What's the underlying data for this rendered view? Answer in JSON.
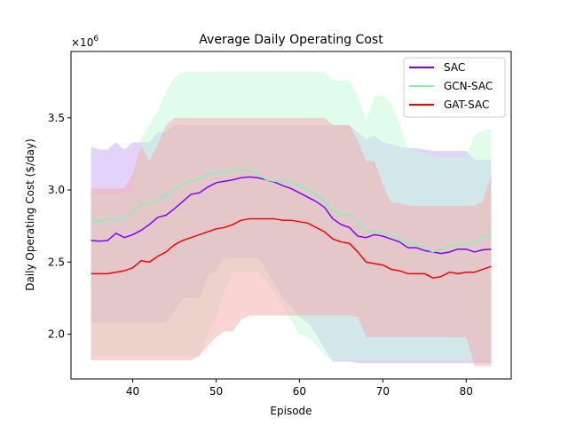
{
  "chart_data": {
    "type": "line",
    "title": "Average Daily Operating Cost",
    "xlabel": "Episode",
    "ylabel": "Daily Operating Cost ($/day)",
    "y_multiplier_text": "×10",
    "y_multiplier_exp": "6",
    "xlim": [
      32.6,
      85.4
    ],
    "ylim": [
      1.69,
      3.96
    ],
    "xticks": [
      40,
      50,
      60,
      70,
      80
    ],
    "yticks": [
      2.0,
      2.5,
      3.0,
      3.5
    ],
    "ytick_labels": [
      "2.0",
      "2.5",
      "3.0",
      "3.5"
    ],
    "legend_position": "top-right",
    "x": [
      35,
      36,
      37,
      38,
      39,
      40,
      41,
      42,
      43,
      44,
      45,
      46,
      47,
      48,
      49,
      50,
      51,
      52,
      53,
      54,
      55,
      56,
      57,
      58,
      59,
      60,
      61,
      62,
      63,
      64,
      65,
      66,
      67,
      68,
      69,
      70,
      71,
      72,
      73,
      74,
      75,
      76,
      77,
      78,
      79,
      80,
      81,
      82,
      83
    ],
    "series": [
      {
        "name": "SAC",
        "color": "#7f00ff",
        "band_color": "#c8a8f8",
        "values": [
          2.65,
          2.645,
          2.65,
          2.7,
          2.67,
          2.69,
          2.72,
          2.76,
          2.81,
          2.825,
          2.87,
          2.92,
          2.97,
          2.98,
          3.02,
          3.05,
          3.06,
          3.07,
          3.085,
          3.09,
          3.085,
          3.07,
          3.055,
          3.03,
          3.01,
          2.98,
          2.95,
          2.92,
          2.88,
          2.8,
          2.76,
          2.74,
          2.68,
          2.67,
          2.69,
          2.68,
          2.66,
          2.64,
          2.6,
          2.6,
          2.58,
          2.57,
          2.56,
          2.57,
          2.59,
          2.59,
          2.57,
          2.585,
          2.59
        ],
        "upper": [
          3.3,
          3.28,
          3.28,
          3.33,
          3.28,
          3.33,
          3.33,
          3.33,
          3.4,
          3.4,
          3.45,
          3.45,
          3.45,
          3.45,
          3.45,
          3.45,
          3.45,
          3.45,
          3.45,
          3.45,
          3.45,
          3.45,
          3.45,
          3.45,
          3.45,
          3.45,
          3.45,
          3.45,
          3.45,
          3.45,
          3.45,
          3.45,
          3.4,
          3.35,
          3.38,
          3.33,
          3.32,
          3.3,
          3.29,
          3.29,
          3.28,
          3.27,
          3.27,
          3.27,
          3.27,
          3.27,
          3.21,
          3.21,
          3.21
        ],
        "lower": [
          2.08,
          2.08,
          2.08,
          2.08,
          2.08,
          2.08,
          2.08,
          2.08,
          2.08,
          2.08,
          2.16,
          2.25,
          2.25,
          2.25,
          2.4,
          2.45,
          2.53,
          2.53,
          2.53,
          2.53,
          2.53,
          2.45,
          2.35,
          2.25,
          2.2,
          2.12,
          2.08,
          2.0,
          1.9,
          1.81,
          1.81,
          1.81,
          1.8,
          1.8,
          1.8,
          1.8,
          1.8,
          1.8,
          1.8,
          1.8,
          1.8,
          1.8,
          1.8,
          1.8,
          1.8,
          1.8,
          1.8,
          1.8,
          1.8
        ]
      },
      {
        "name": "GCN-SAC",
        "color": "#7ff5b4",
        "band_color": "#c2fbd9",
        "values": [
          2.78,
          2.78,
          2.8,
          2.79,
          2.81,
          2.85,
          2.9,
          2.91,
          2.93,
          2.96,
          3.01,
          3.04,
          3.06,
          3.08,
          3.11,
          3.12,
          3.12,
          3.14,
          3.14,
          3.13,
          3.11,
          3.07,
          3.06,
          3.06,
          3.05,
          3.03,
          3.0,
          2.97,
          2.92,
          2.86,
          2.83,
          2.83,
          2.78,
          2.71,
          2.72,
          2.71,
          2.69,
          2.66,
          2.64,
          2.62,
          2.6,
          2.57,
          2.59,
          2.61,
          2.62,
          2.62,
          2.64,
          2.67,
          2.7
        ],
        "upper": [
          2.97,
          2.97,
          2.97,
          2.97,
          2.97,
          3.01,
          3.36,
          3.45,
          3.55,
          3.68,
          3.78,
          3.82,
          3.82,
          3.82,
          3.82,
          3.82,
          3.82,
          3.82,
          3.82,
          3.82,
          3.82,
          3.82,
          3.82,
          3.82,
          3.82,
          3.82,
          3.82,
          3.82,
          3.82,
          3.76,
          3.76,
          3.76,
          3.65,
          3.48,
          3.65,
          3.65,
          3.6,
          3.46,
          3.29,
          3.28,
          3.25,
          3.23,
          3.23,
          3.23,
          3.23,
          3.23,
          3.38,
          3.41,
          3.42
        ],
        "lower": [
          1.85,
          1.85,
          1.85,
          1.85,
          1.85,
          1.85,
          1.85,
          1.85,
          1.85,
          1.85,
          1.85,
          1.85,
          1.85,
          1.85,
          2.0,
          2.12,
          2.3,
          2.43,
          2.43,
          2.43,
          2.43,
          2.38,
          2.28,
          2.2,
          2.1,
          2.0,
          1.98,
          1.93,
          1.85,
          1.82,
          1.82,
          1.82,
          1.82,
          1.82,
          1.82,
          1.82,
          1.82,
          1.82,
          1.82,
          1.82,
          1.82,
          1.82,
          1.82,
          1.82,
          1.82,
          1.82,
          1.82,
          1.82,
          1.82
        ]
      },
      {
        "name": "GAT-SAC",
        "color": "#ff0000",
        "band_color": "#f5a8a8",
        "values": [
          2.42,
          2.42,
          2.42,
          2.43,
          2.44,
          2.46,
          2.51,
          2.5,
          2.54,
          2.57,
          2.62,
          2.65,
          2.67,
          2.69,
          2.71,
          2.73,
          2.74,
          2.76,
          2.79,
          2.8,
          2.8,
          2.8,
          2.8,
          2.79,
          2.79,
          2.78,
          2.77,
          2.74,
          2.71,
          2.66,
          2.64,
          2.63,
          2.57,
          2.5,
          2.49,
          2.48,
          2.45,
          2.44,
          2.42,
          2.42,
          2.42,
          2.39,
          2.4,
          2.43,
          2.42,
          2.43,
          2.43,
          2.45,
          2.47
        ],
        "upper": [
          3.01,
          3.01,
          3.01,
          3.01,
          3.01,
          3.11,
          3.31,
          3.2,
          3.31,
          3.45,
          3.5,
          3.5,
          3.5,
          3.5,
          3.5,
          3.5,
          3.5,
          3.5,
          3.5,
          3.5,
          3.5,
          3.5,
          3.5,
          3.5,
          3.5,
          3.5,
          3.5,
          3.5,
          3.5,
          3.45,
          3.45,
          3.45,
          3.34,
          3.2,
          3.2,
          3.04,
          2.91,
          2.91,
          2.89,
          2.89,
          2.89,
          2.89,
          2.89,
          2.89,
          2.89,
          2.89,
          2.89,
          2.92,
          3.1
        ],
        "lower": [
          1.82,
          1.82,
          1.82,
          1.82,
          1.82,
          1.82,
          1.82,
          1.82,
          1.82,
          1.82,
          1.82,
          1.82,
          1.82,
          1.85,
          1.92,
          1.98,
          2.02,
          2.02,
          2.1,
          2.13,
          2.13,
          2.13,
          2.13,
          2.13,
          2.13,
          2.13,
          2.13,
          2.13,
          2.13,
          2.13,
          2.13,
          2.13,
          2.12,
          1.98,
          1.98,
          1.98,
          1.98,
          1.98,
          1.98,
          1.98,
          1.98,
          1.98,
          1.98,
          1.98,
          1.98,
          1.98,
          1.78,
          1.78,
          1.78
        ]
      }
    ]
  }
}
